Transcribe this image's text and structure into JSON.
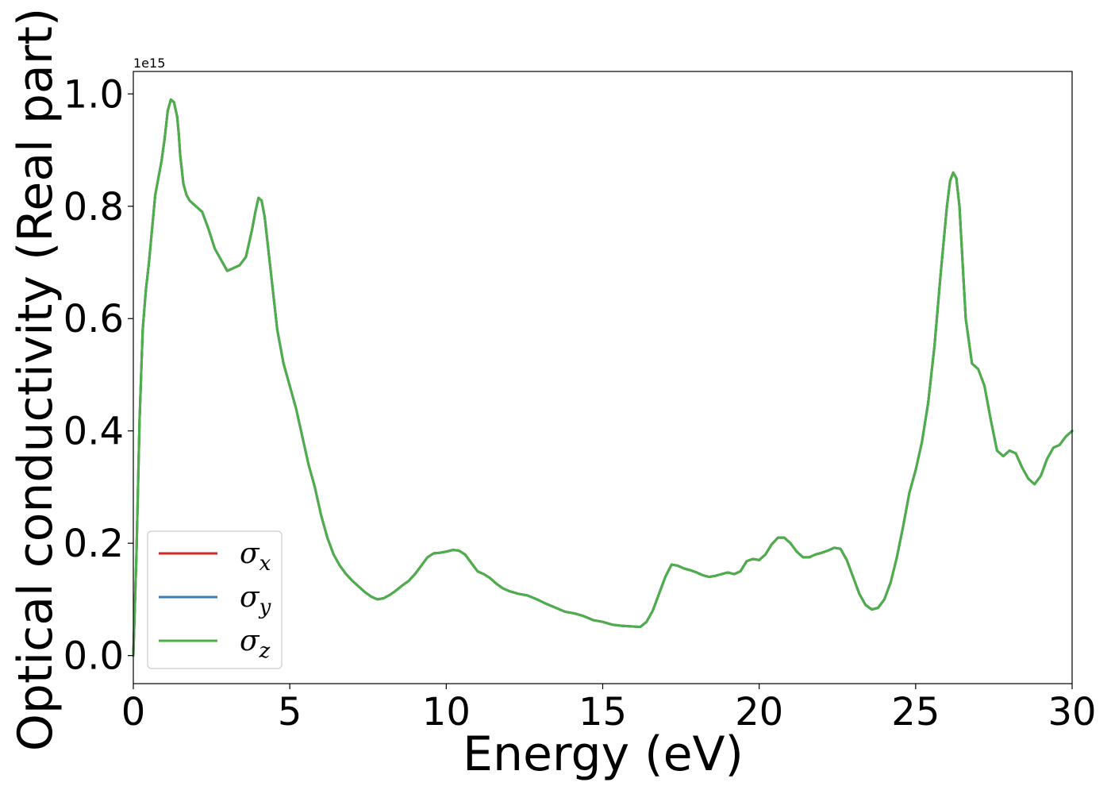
{
  "chart_data": {
    "type": "line",
    "title": "",
    "xlabel": "Energy (eV)",
    "ylabel": "Optical conductivity (Real part)",
    "y_offset_label": "1e15",
    "xlim": [
      0,
      30
    ],
    "ylim": [
      -0.05,
      1.04
    ],
    "xticks": [
      0,
      5,
      10,
      15,
      20,
      25,
      30
    ],
    "xtick_labels": [
      "0",
      "5",
      "10",
      "15",
      "20",
      "25",
      "30"
    ],
    "yticks": [
      0.0,
      0.2,
      0.4,
      0.6,
      0.8,
      1.0
    ],
    "ytick_labels": [
      "0.0",
      "0.2",
      "0.4",
      "0.6",
      "0.8",
      "1.0"
    ],
    "grid": false,
    "legend_position": "lower-left",
    "x": [
      0,
      0.1,
      0.2,
      0.3,
      0.4,
      0.5,
      0.6,
      0.7,
      0.8,
      0.9,
      1.0,
      1.1,
      1.2,
      1.3,
      1.4,
      1.45,
      1.5,
      1.6,
      1.7,
      1.8,
      1.9,
      2.0,
      2.2,
      2.4,
      2.6,
      2.8,
      3.0,
      3.2,
      3.4,
      3.6,
      3.8,
      3.9,
      4.0,
      4.1,
      4.2,
      4.4,
      4.6,
      4.8,
      5.0,
      5.2,
      5.4,
      5.6,
      5.8,
      6.0,
      6.2,
      6.4,
      6.6,
      6.8,
      7.0,
      7.2,
      7.4,
      7.6,
      7.8,
      8.0,
      8.2,
      8.4,
      8.6,
      8.8,
      9.0,
      9.2,
      9.4,
      9.6,
      9.8,
      10.0,
      10.2,
      10.4,
      10.6,
      10.8,
      11.0,
      11.2,
      11.4,
      11.6,
      11.8,
      12.0,
      12.3,
      12.6,
      12.9,
      13.2,
      13.5,
      13.8,
      14.1,
      14.4,
      14.7,
      15.0,
      15.3,
      15.6,
      15.9,
      16.2,
      16.4,
      16.6,
      16.8,
      17.0,
      17.2,
      17.4,
      17.6,
      17.8,
      18.0,
      18.2,
      18.4,
      18.6,
      18.8,
      19.0,
      19.2,
      19.4,
      19.6,
      19.8,
      20.0,
      20.2,
      20.4,
      20.6,
      20.8,
      21.0,
      21.2,
      21.4,
      21.6,
      21.8,
      22.0,
      22.2,
      22.4,
      22.6,
      22.8,
      23.0,
      23.2,
      23.4,
      23.6,
      23.8,
      24.0,
      24.2,
      24.4,
      24.6,
      24.8,
      25.0,
      25.2,
      25.4,
      25.6,
      25.8,
      26.0,
      26.1,
      26.2,
      26.3,
      26.4,
      26.6,
      26.8,
      27.0,
      27.2,
      27.4,
      27.6,
      27.8,
      28.0,
      28.2,
      28.4,
      28.6,
      28.8,
      29.0,
      29.2,
      29.4,
      29.6,
      29.8,
      30.0
    ],
    "series": [
      {
        "name": "σx",
        "label_base": "σ",
        "label_sub": "x",
        "color": "#d62728",
        "y": [
          0.0,
          0.18,
          0.42,
          0.58,
          0.65,
          0.7,
          0.76,
          0.82,
          0.85,
          0.88,
          0.92,
          0.97,
          0.99,
          0.985,
          0.96,
          0.93,
          0.89,
          0.84,
          0.82,
          0.81,
          0.805,
          0.8,
          0.79,
          0.76,
          0.725,
          0.705,
          0.685,
          0.69,
          0.695,
          0.71,
          0.76,
          0.79,
          0.815,
          0.81,
          0.78,
          0.68,
          0.58,
          0.52,
          0.48,
          0.44,
          0.39,
          0.34,
          0.3,
          0.25,
          0.21,
          0.18,
          0.16,
          0.145,
          0.133,
          0.123,
          0.113,
          0.105,
          0.1,
          0.102,
          0.108,
          0.116,
          0.125,
          0.133,
          0.145,
          0.16,
          0.175,
          0.182,
          0.183,
          0.185,
          0.188,
          0.187,
          0.18,
          0.165,
          0.15,
          0.145,
          0.138,
          0.128,
          0.12,
          0.115,
          0.11,
          0.107,
          0.1,
          0.092,
          0.085,
          0.078,
          0.075,
          0.07,
          0.063,
          0.06,
          0.055,
          0.053,
          0.052,
          0.051,
          0.06,
          0.08,
          0.11,
          0.14,
          0.162,
          0.16,
          0.155,
          0.152,
          0.148,
          0.143,
          0.14,
          0.142,
          0.145,
          0.148,
          0.145,
          0.15,
          0.168,
          0.172,
          0.17,
          0.18,
          0.198,
          0.21,
          0.21,
          0.2,
          0.185,
          0.175,
          0.175,
          0.18,
          0.183,
          0.187,
          0.192,
          0.19,
          0.17,
          0.14,
          0.11,
          0.09,
          0.082,
          0.085,
          0.1,
          0.13,
          0.175,
          0.23,
          0.29,
          0.33,
          0.38,
          0.45,
          0.55,
          0.68,
          0.8,
          0.845,
          0.86,
          0.85,
          0.8,
          0.6,
          0.52,
          0.51,
          0.48,
          0.42,
          0.365,
          0.355,
          0.365,
          0.36,
          0.335,
          0.315,
          0.305,
          0.32,
          0.35,
          0.37,
          0.375,
          0.39,
          0.4
        ]
      },
      {
        "name": "σy",
        "label_base": "σ",
        "label_sub": "y",
        "color": "#377eb8",
        "y": [
          0.0,
          0.18,
          0.42,
          0.58,
          0.65,
          0.7,
          0.76,
          0.82,
          0.85,
          0.88,
          0.92,
          0.97,
          0.99,
          0.985,
          0.96,
          0.93,
          0.89,
          0.84,
          0.82,
          0.81,
          0.805,
          0.8,
          0.79,
          0.76,
          0.725,
          0.705,
          0.685,
          0.69,
          0.695,
          0.71,
          0.76,
          0.79,
          0.815,
          0.81,
          0.78,
          0.68,
          0.58,
          0.52,
          0.48,
          0.44,
          0.39,
          0.34,
          0.3,
          0.25,
          0.21,
          0.18,
          0.16,
          0.145,
          0.133,
          0.123,
          0.113,
          0.105,
          0.1,
          0.102,
          0.108,
          0.116,
          0.125,
          0.133,
          0.145,
          0.16,
          0.175,
          0.182,
          0.183,
          0.185,
          0.188,
          0.187,
          0.18,
          0.165,
          0.15,
          0.145,
          0.138,
          0.128,
          0.12,
          0.115,
          0.11,
          0.107,
          0.1,
          0.092,
          0.085,
          0.078,
          0.075,
          0.07,
          0.063,
          0.06,
          0.055,
          0.053,
          0.052,
          0.051,
          0.06,
          0.08,
          0.11,
          0.14,
          0.162,
          0.16,
          0.155,
          0.152,
          0.148,
          0.143,
          0.14,
          0.142,
          0.145,
          0.148,
          0.145,
          0.15,
          0.168,
          0.172,
          0.17,
          0.18,
          0.198,
          0.21,
          0.21,
          0.2,
          0.185,
          0.175,
          0.175,
          0.18,
          0.183,
          0.187,
          0.192,
          0.19,
          0.17,
          0.14,
          0.11,
          0.09,
          0.082,
          0.085,
          0.1,
          0.13,
          0.175,
          0.23,
          0.29,
          0.33,
          0.38,
          0.45,
          0.55,
          0.68,
          0.8,
          0.845,
          0.86,
          0.85,
          0.8,
          0.6,
          0.52,
          0.51,
          0.48,
          0.42,
          0.365,
          0.355,
          0.365,
          0.36,
          0.335,
          0.315,
          0.305,
          0.32,
          0.35,
          0.37,
          0.375,
          0.39,
          0.4
        ]
      },
      {
        "name": "σz",
        "label_base": "σ",
        "label_sub": "z",
        "color": "#4daf4a",
        "y": [
          0.0,
          0.18,
          0.42,
          0.58,
          0.65,
          0.7,
          0.76,
          0.82,
          0.85,
          0.88,
          0.92,
          0.97,
          0.99,
          0.985,
          0.96,
          0.93,
          0.89,
          0.84,
          0.82,
          0.81,
          0.805,
          0.8,
          0.79,
          0.76,
          0.725,
          0.705,
          0.685,
          0.69,
          0.695,
          0.71,
          0.76,
          0.79,
          0.815,
          0.81,
          0.78,
          0.68,
          0.58,
          0.52,
          0.48,
          0.44,
          0.39,
          0.34,
          0.3,
          0.25,
          0.21,
          0.18,
          0.16,
          0.145,
          0.133,
          0.123,
          0.113,
          0.105,
          0.1,
          0.102,
          0.108,
          0.116,
          0.125,
          0.133,
          0.145,
          0.16,
          0.175,
          0.182,
          0.183,
          0.185,
          0.188,
          0.187,
          0.18,
          0.165,
          0.15,
          0.145,
          0.138,
          0.128,
          0.12,
          0.115,
          0.11,
          0.107,
          0.1,
          0.092,
          0.085,
          0.078,
          0.075,
          0.07,
          0.063,
          0.06,
          0.055,
          0.053,
          0.052,
          0.051,
          0.06,
          0.08,
          0.11,
          0.14,
          0.162,
          0.16,
          0.155,
          0.152,
          0.148,
          0.143,
          0.14,
          0.142,
          0.145,
          0.148,
          0.145,
          0.15,
          0.168,
          0.172,
          0.17,
          0.18,
          0.198,
          0.21,
          0.21,
          0.2,
          0.185,
          0.175,
          0.175,
          0.18,
          0.183,
          0.187,
          0.192,
          0.19,
          0.17,
          0.14,
          0.11,
          0.09,
          0.082,
          0.085,
          0.1,
          0.13,
          0.175,
          0.23,
          0.29,
          0.33,
          0.38,
          0.45,
          0.55,
          0.68,
          0.8,
          0.845,
          0.86,
          0.85,
          0.8,
          0.6,
          0.52,
          0.51,
          0.48,
          0.42,
          0.365,
          0.355,
          0.365,
          0.36,
          0.335,
          0.315,
          0.305,
          0.32,
          0.35,
          0.37,
          0.375,
          0.39,
          0.4
        ]
      }
    ]
  }
}
